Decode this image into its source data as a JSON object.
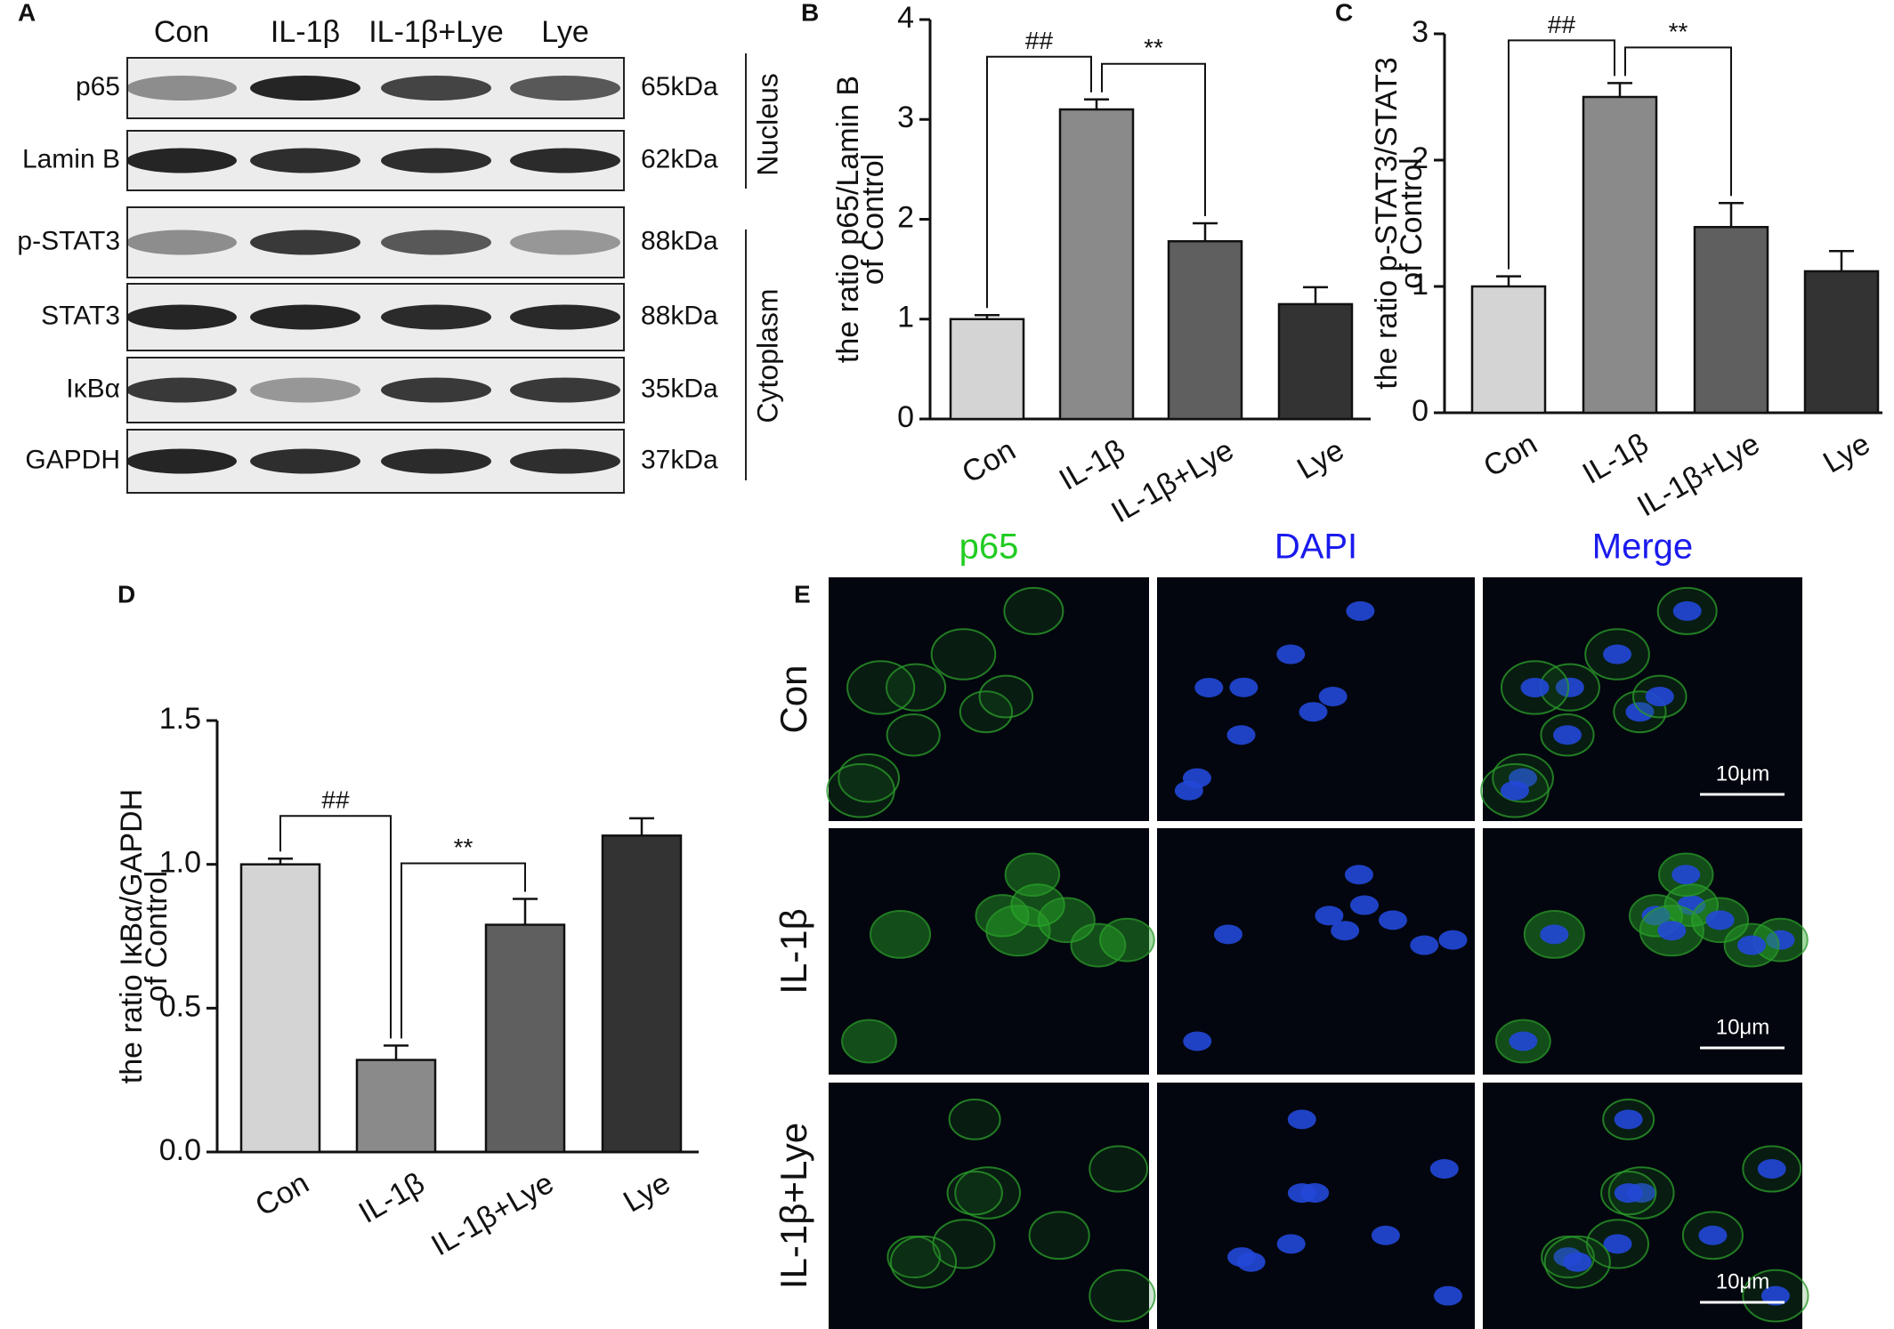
{
  "blot": {
    "panel": "A",
    "lanes": [
      "Con",
      "IL-1β",
      "IL-1β+Lye",
      "Lye"
    ],
    "rows": [
      {
        "protein": "p65",
        "size": "65kDa"
      },
      {
        "protein": "Lamin B",
        "size": "62kDa"
      },
      {
        "protein": "p-STAT3",
        "size": "88kDa"
      },
      {
        "protein": "STAT3",
        "size": "88kDa"
      },
      {
        "protein": "IκBα",
        "size": "35kDa"
      },
      {
        "protein": "GAPDH",
        "size": "37kDa"
      }
    ],
    "compartments": [
      "Nucleus",
      "Cytoplasm"
    ]
  },
  "chart_data": [
    {
      "type": "bar",
      "panel": "B",
      "y_label": [
        "the ratio p65/Lamin B",
        "of Control"
      ],
      "categories": [
        "Con",
        "IL-1β",
        "IL-1β+Lye",
        "Lye"
      ],
      "values": [
        1.0,
        3.1,
        1.78,
        1.15
      ],
      "errors": [
        0.04,
        0.1,
        0.18,
        0.17
      ],
      "color": [
        "#d4d4d4",
        "#8a8a8a",
        "#5f5f5f",
        "#333333"
      ],
      "ylim": [
        0,
        4
      ],
      "yticks": [
        0,
        1,
        2,
        3,
        4
      ],
      "annotations": [
        "##",
        "**"
      ]
    },
    {
      "type": "bar",
      "panel": "C",
      "y_label": [
        "the ratio p-STAT3/STAT3",
        "of Control"
      ],
      "categories": [
        "Con",
        "IL-1β",
        "IL-1β+Lye",
        "Lye"
      ],
      "values": [
        1.0,
        2.5,
        1.47,
        1.12
      ],
      "errors": [
        0.08,
        0.11,
        0.19,
        0.16
      ],
      "color": [
        "#d4d4d4",
        "#8a8a8a",
        "#5f5f5f",
        "#333333"
      ],
      "ylim": [
        0,
        3
      ],
      "yticks": [
        0,
        1,
        2,
        3
      ],
      "annotations": [
        "##",
        "**"
      ]
    },
    {
      "type": "bar",
      "panel": "D",
      "y_label": [
        "the ratio IκBα/GAPDH",
        "of Control"
      ],
      "categories": [
        "Con",
        "IL-1β",
        "IL-1β+Lye",
        "Lye"
      ],
      "values": [
        1.0,
        0.32,
        0.79,
        1.1
      ],
      "errors": [
        0.02,
        0.05,
        0.09,
        0.06
      ],
      "color": [
        "#d4d4d4",
        "#8a8a8a",
        "#5f5f5f",
        "#333333"
      ],
      "ylim": [
        0,
        1.5
      ],
      "yticks": [
        {
          "value": 0,
          "label": "0.0"
        },
        0.5,
        {
          "value": 1,
          "label": "1.0"
        },
        1.5
      ],
      "annotations": [
        "##",
        "**"
      ]
    }
  ],
  "microscopy": {
    "panel": "E",
    "columns": [
      "p65",
      "DAPI",
      "Merge"
    ],
    "rows": [
      "Con",
      "IL-1β",
      "IL-1β+Lye"
    ],
    "scale_bar": "10μm"
  }
}
